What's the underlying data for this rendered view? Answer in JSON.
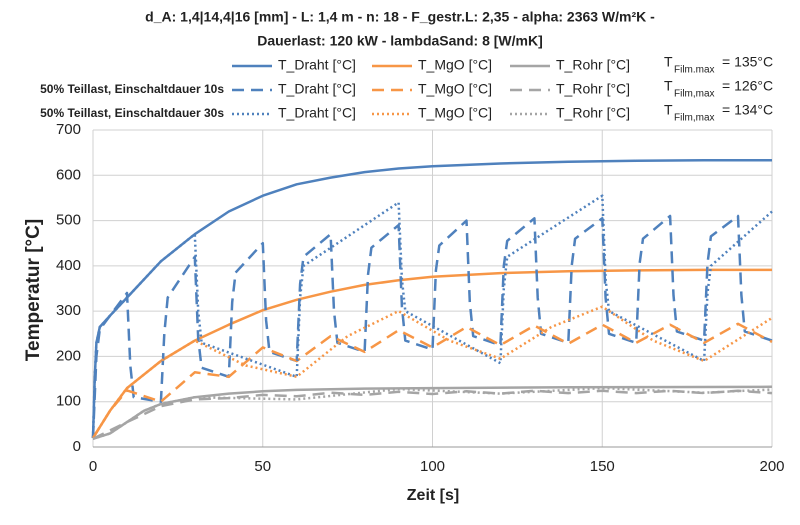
{
  "chart_data": {
    "type": "line",
    "title_lines": [
      "d_A: 1,4|14,4|16 [mm] - L: 1,4 m - n: 18 - F_gestr.L: 2,35 - alpha: 2363 W/m²K -",
      "Dauerlast: 120 kW - lambdaSand: 8 [W/mK]"
    ],
    "xlabel": "Zeit [s]",
    "ylabel": "Temperatur [°C]",
    "xlim": [
      0,
      200
    ],
    "xticks": [
      0,
      50,
      100,
      150,
      200
    ],
    "ylim": [
      0,
      700
    ],
    "yticks": [
      0,
      100,
      200,
      300,
      400,
      500,
      600,
      700
    ],
    "grid": true,
    "legend_row_labels": [
      "50% Teillast, Einschaltdauer 10s",
      "50% Teillast, Einschaltdauer 30s"
    ],
    "film_max": [
      {
        "symbol": "T",
        "subscript": "Film.max",
        "text": "=  135°C"
      },
      {
        "symbol": "T",
        "subscript": "Film,max",
        "text": "=  126°C"
      },
      {
        "symbol": "T",
        "subscript": "Film,max",
        "text": "=  134°C"
      }
    ],
    "series": [
      {
        "name": "T_Draht [°C]",
        "color": "#4f81bd",
        "linestyle": "solid",
        "x": [
          0,
          0.5,
          1,
          2,
          5,
          10,
          20,
          30,
          40,
          50,
          60,
          70,
          80,
          90,
          100,
          120,
          140,
          160,
          180,
          200
        ],
        "values": [
          20,
          150,
          230,
          265,
          290,
          330,
          410,
          470,
          520,
          555,
          580,
          595,
          607,
          615,
          620,
          626,
          630,
          632,
          633,
          633
        ]
      },
      {
        "name": "T_MgO [°C]",
        "color": "#f79646",
        "linestyle": "solid",
        "x": [
          0,
          5,
          10,
          20,
          30,
          40,
          50,
          60,
          70,
          80,
          90,
          100,
          120,
          140,
          160,
          180,
          200
        ],
        "values": [
          20,
          80,
          130,
          190,
          235,
          270,
          302,
          325,
          343,
          358,
          368,
          376,
          384,
          388,
          390,
          391,
          391
        ]
      },
      {
        "name": "T_Rohr [°C]",
        "color": "#a5a5a5",
        "linestyle": "solid",
        "x": [
          0,
          5,
          10,
          15,
          20,
          30,
          40,
          50,
          60,
          80,
          100,
          140,
          200
        ],
        "values": [
          18,
          30,
          55,
          80,
          95,
          110,
          118,
          123,
          126,
          129,
          130,
          132,
          133
        ]
      },
      {
        "name": "T_Draht [°C]",
        "color": "#4f81bd",
        "linestyle": "dashed",
        "x": [
          0,
          1,
          2,
          10,
          11,
          12,
          20,
          21,
          22,
          30,
          31,
          32,
          40,
          41,
          42,
          50,
          51,
          52,
          60,
          61,
          62,
          70,
          71,
          72,
          80,
          81,
          82,
          90,
          91,
          92,
          100,
          101,
          102,
          110,
          111,
          112,
          120,
          121,
          122,
          130,
          131,
          132,
          140,
          141,
          142,
          150,
          151,
          152,
          160,
          161,
          162,
          170,
          171,
          172,
          180,
          181,
          182,
          190,
          191,
          192,
          200
        ],
        "values": [
          20,
          200,
          260,
          340,
          180,
          110,
          100,
          250,
          330,
          420,
          240,
          175,
          155,
          320,
          385,
          450,
          280,
          210,
          190,
          360,
          420,
          470,
          300,
          230,
          210,
          380,
          440,
          490,
          310,
          235,
          215,
          390,
          445,
          500,
          320,
          245,
          225,
          400,
          455,
          505,
          330,
          250,
          230,
          400,
          460,
          505,
          330,
          250,
          230,
          405,
          460,
          510,
          335,
          255,
          235,
          405,
          465,
          510,
          335,
          255,
          235
        ]
      },
      {
        "name": "T_MgO [°C]",
        "color": "#f79646",
        "linestyle": "dashed",
        "x": [
          0,
          5,
          10,
          20,
          30,
          40,
          50,
          60,
          70,
          80,
          90,
          100,
          110,
          120,
          130,
          140,
          150,
          160,
          170,
          180,
          190,
          200
        ],
        "values": [
          20,
          80,
          125,
          100,
          165,
          155,
          220,
          190,
          245,
          210,
          258,
          220,
          265,
          225,
          268,
          228,
          270,
          230,
          270,
          230,
          272,
          232
        ]
      },
      {
        "name": "T_Rohr [°C]",
        "color": "#a5a5a5",
        "linestyle": "dashed",
        "x": [
          0,
          10,
          20,
          30,
          40,
          50,
          60,
          70,
          80,
          90,
          100,
          110,
          120,
          130,
          140,
          150,
          160,
          170,
          180,
          190,
          200
        ],
        "values": [
          18,
          55,
          90,
          105,
          108,
          115,
          112,
          120,
          115,
          122,
          117,
          123,
          118,
          124,
          119,
          124,
          119,
          124,
          119,
          124,
          119
        ]
      },
      {
        "name": "T_Draht [°C]",
        "color": "#4f81bd",
        "linestyle": "dotted",
        "x": [
          0,
          0.5,
          1,
          2,
          5,
          10,
          20,
          30,
          31,
          32,
          60,
          61,
          62,
          90,
          91,
          92,
          120,
          121,
          122,
          150,
          151,
          152,
          180,
          181,
          182,
          200
        ],
        "values": [
          20,
          150,
          230,
          265,
          290,
          330,
          410,
          470,
          300,
          230,
          155,
          330,
          400,
          540,
          370,
          300,
          185,
          350,
          420,
          555,
          370,
          300,
          190,
          340,
          400,
          520
        ]
      },
      {
        "name": "T_MgO [°C]",
        "color": "#f79646",
        "linestyle": "dotted",
        "x": [
          0,
          5,
          10,
          20,
          30,
          45,
          60,
          75,
          90,
          105,
          120,
          135,
          150,
          165,
          180,
          200
        ],
        "values": [
          20,
          80,
          130,
          190,
          235,
          180,
          155,
          245,
          300,
          235,
          195,
          265,
          310,
          235,
          190,
          285
        ]
      },
      {
        "name": "T_Rohr [°C]",
        "color": "#a5a5a5",
        "linestyle": "dotted",
        "x": [
          0,
          5,
          10,
          15,
          20,
          30,
          60,
          90,
          120,
          150,
          180,
          200
        ],
        "values": [
          18,
          30,
          55,
          80,
          95,
          110,
          105,
          128,
          118,
          130,
          120,
          127
        ]
      }
    ]
  }
}
